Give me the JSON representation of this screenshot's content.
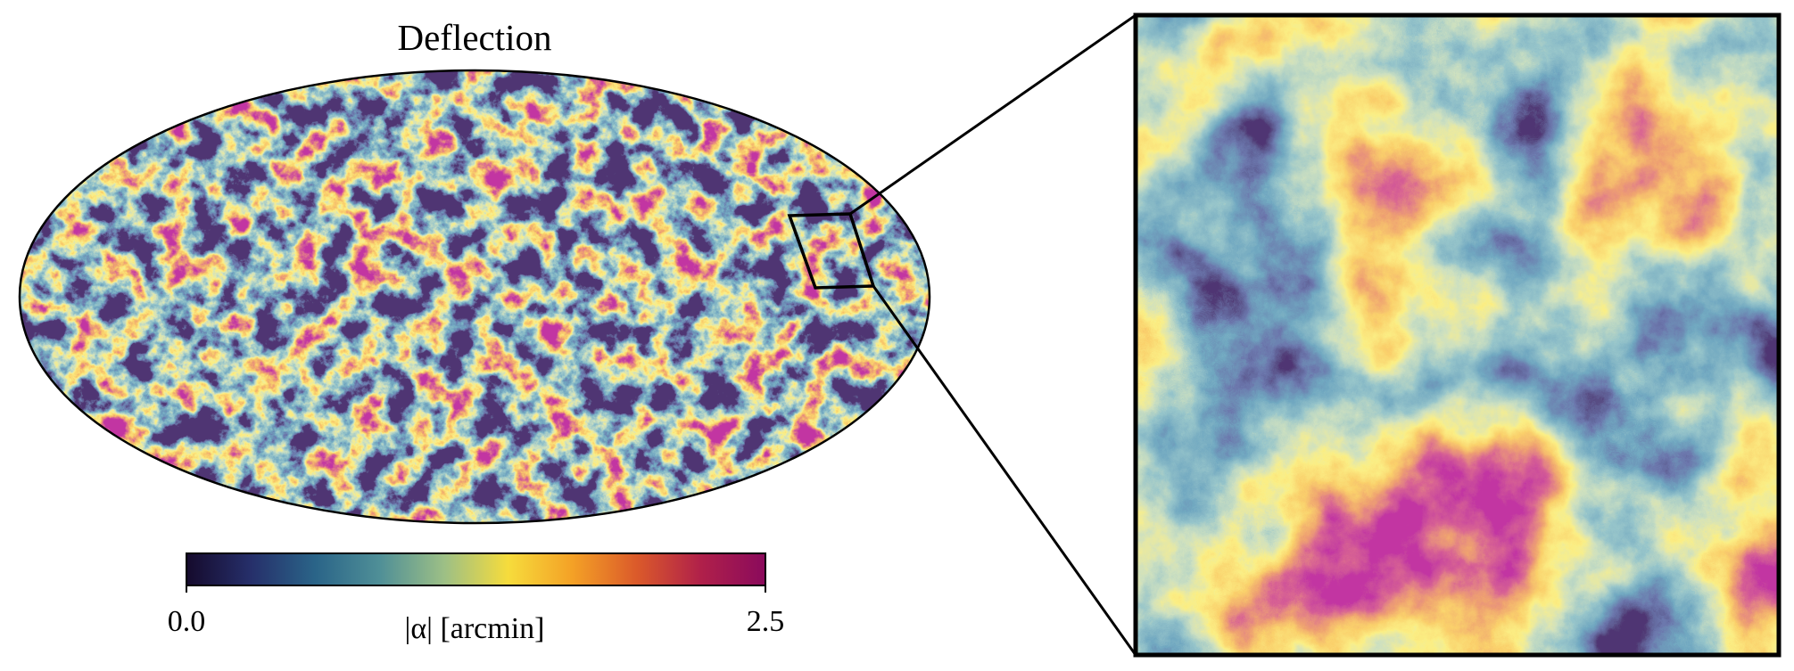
{
  "chart_data": {
    "type": "map",
    "title": "Deflection",
    "colorbar": {
      "label": "|α| [arcmin]",
      "lim": [
        0,
        2.5
      ],
      "ticks": [
        {
          "value": 0,
          "label": "0.0"
        },
        2.5
      ],
      "colors": [
        "#150a2c",
        "#262f6a",
        "#2a6488",
        "#4f8f97",
        "#9cbf86",
        "#f6dc3c",
        "#f4a126",
        "#db5a2a",
        "#b0204a",
        "#8a0a5c"
      ]
    }
  }
}
